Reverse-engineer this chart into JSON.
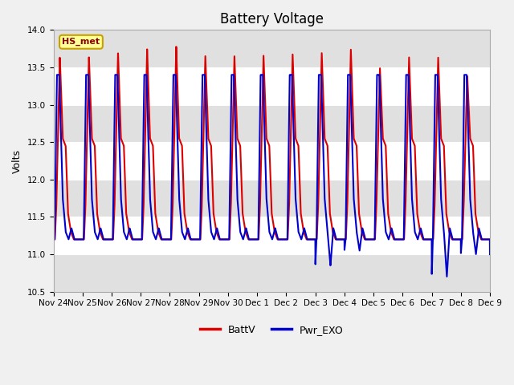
{
  "title": "Battery Voltage",
  "ylabel": "Volts",
  "ylim": [
    10.5,
    14.0
  ],
  "background_color": "#f0f0f0",
  "plot_bg_color": "#f0f0f0",
  "grid_color": "white",
  "annotation_text": "HS_met",
  "annotation_box_color": "#ffff99",
  "annotation_border_color": "#c8a000",
  "x_tick_labels": [
    "Nov 24",
    "Nov 25",
    "Nov 26",
    "Nov 27",
    "Nov 28",
    "Nov 29",
    "Nov 30",
    "Dec 1",
    "Dec 2",
    "Dec 3",
    "Dec 4",
    "Dec 5",
    "Dec 6",
    "Dec 7",
    "Dec 8",
    "Dec 9"
  ],
  "legend_labels": [
    "BattV",
    "Pwr_EXO"
  ],
  "line1_color": "#dd0000",
  "line2_color": "#0000cc",
  "line_width": 1.5,
  "title_fontsize": 12,
  "label_fontsize": 9,
  "tick_fontsize": 7.5
}
